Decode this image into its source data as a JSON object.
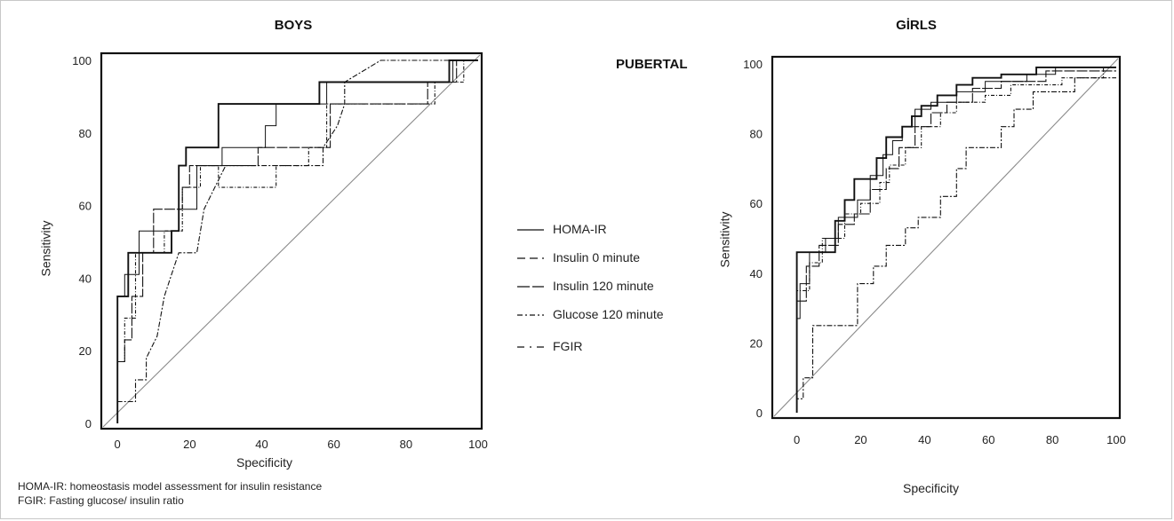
{
  "charts_common": {
    "subtitle": "PUBERTAL",
    "legend": [
      {
        "name": "HOMA-IR",
        "style": "solid"
      },
      {
        "name": "Insulin 0 minute",
        "style": "dash"
      },
      {
        "name": "Insulin 120 minute",
        "style": "longdash"
      },
      {
        "name": "Glucose 120 minute",
        "style": "dashdot"
      },
      {
        "name": "FGIR",
        "style": "dashdot-sparse"
      }
    ],
    "footnotes": [
      "HOMA-IR: homeostasis model assessment for insulin resistance",
      "FGIR: Fasting glucose/ insulin ratio"
    ]
  },
  "chart_data": [
    {
      "type": "line",
      "title": "BOYS",
      "xlabel": "Specificity",
      "ylabel": "Sensitivity",
      "xlim": [
        0,
        100
      ],
      "ylim": [
        0,
        100
      ],
      "xticks": [
        0,
        20,
        40,
        60,
        80,
        100
      ],
      "yticks": [
        0,
        20,
        40,
        60,
        80,
        100
      ],
      "reference_line": true,
      "series": [
        {
          "name": "HOMA-IR",
          "points": [
            [
              0,
              0
            ],
            [
              0,
              35
            ],
            [
              3,
              35
            ],
            [
              3,
              47
            ],
            [
              15,
              47
            ],
            [
              15,
              53
            ],
            [
              17,
              53
            ],
            [
              17,
              71
            ],
            [
              19,
              71
            ],
            [
              19,
              76
            ],
            [
              28,
              76
            ],
            [
              28,
              88
            ],
            [
              56,
              88
            ],
            [
              56,
              94
            ],
            [
              92,
              94
            ],
            [
              92,
              100
            ],
            [
              100,
              100
            ]
          ]
        },
        {
          "name": "Insulin 0 minute",
          "points": [
            [
              0,
              0
            ],
            [
              0,
              35
            ],
            [
              2,
              35
            ],
            [
              2,
              41
            ],
            [
              6,
              41
            ],
            [
              6,
              53
            ],
            [
              17,
              53
            ],
            [
              17,
              59
            ],
            [
              22,
              59
            ],
            [
              22,
              71
            ],
            [
              29,
              71
            ],
            [
              29,
              76
            ],
            [
              41,
              76
            ],
            [
              41,
              82
            ],
            [
              44,
              82
            ],
            [
              44,
              88
            ],
            [
              58,
              88
            ],
            [
              58,
              94
            ],
            [
              93,
              94
            ],
            [
              93,
              100
            ],
            [
              100,
              100
            ]
          ]
        },
        {
          "name": "Insulin 120 minute",
          "points": [
            [
              0,
              0
            ],
            [
              0,
              17
            ],
            [
              2,
              17
            ],
            [
              2,
              23
            ],
            [
              4,
              23
            ],
            [
              4,
              35
            ],
            [
              7,
              35
            ],
            [
              7,
              47
            ],
            [
              10,
              47
            ],
            [
              10,
              59
            ],
            [
              18,
              59
            ],
            [
              18,
              65
            ],
            [
              20,
              65
            ],
            [
              20,
              71
            ],
            [
              27,
              71
            ],
            [
              27,
              71
            ],
            [
              39,
              71
            ],
            [
              39,
              76
            ],
            [
              48,
              76
            ],
            [
              48,
              76
            ],
            [
              59,
              76
            ],
            [
              59,
              88
            ],
            [
              86,
              88
            ],
            [
              86,
              94
            ],
            [
              94,
              94
            ],
            [
              94,
              100
            ],
            [
              100,
              100
            ]
          ]
        },
        {
          "name": "Glucose 120 minute",
          "points": [
            [
              0,
              0
            ],
            [
              0,
              6
            ],
            [
              5,
              6
            ],
            [
              5,
              12
            ],
            [
              8,
              12
            ],
            [
              8,
              18
            ],
            [
              11,
              24
            ],
            [
              13,
              35
            ],
            [
              15,
              41
            ],
            [
              17,
              47
            ],
            [
              22,
              47
            ],
            [
              24,
              59
            ],
            [
              27,
              65
            ],
            [
              30,
              71
            ],
            [
              57,
              71
            ],
            [
              57,
              76
            ],
            [
              61,
              82
            ],
            [
              63,
              88
            ],
            [
              63,
              94
            ],
            [
              73,
              100
            ],
            [
              96,
              100
            ],
            [
              100,
              100
            ]
          ]
        },
        {
          "name": "FGIR",
          "points": [
            [
              0,
              0
            ],
            [
              0,
              17
            ],
            [
              2,
              17
            ],
            [
              2,
              29
            ],
            [
              5,
              29
            ],
            [
              5,
              47
            ],
            [
              13,
              47
            ],
            [
              13,
              53
            ],
            [
              18,
              53
            ],
            [
              18,
              65
            ],
            [
              23,
              65
            ],
            [
              23,
              71
            ],
            [
              28,
              71
            ],
            [
              28,
              65
            ],
            [
              44,
              65
            ],
            [
              44,
              71
            ],
            [
              53,
              71
            ],
            [
              53,
              76
            ],
            [
              58,
              76
            ],
            [
              58,
              88
            ],
            [
              88,
              88
            ],
            [
              88,
              94
            ],
            [
              96,
              94
            ],
            [
              96,
              100
            ],
            [
              100,
              100
            ]
          ]
        }
      ]
    },
    {
      "type": "line",
      "title": "GİRLS",
      "xlabel": "Specificity",
      "ylabel": "Sensitivity",
      "xlim": [
        0,
        100
      ],
      "ylim": [
        0,
        100
      ],
      "xticks": [
        0,
        20,
        40,
        60,
        80,
        100
      ],
      "yticks": [
        0,
        20,
        40,
        60,
        80,
        100
      ],
      "reference_line": true,
      "series": [
        {
          "name": "HOMA-IR",
          "points": [
            [
              0,
              0
            ],
            [
              0,
              46
            ],
            [
              12,
              46
            ],
            [
              12,
              55
            ],
            [
              15,
              55
            ],
            [
              15,
              61
            ],
            [
              18,
              61
            ],
            [
              18,
              67
            ],
            [
              25,
              67
            ],
            [
              25,
              73
            ],
            [
              28,
              73
            ],
            [
              28,
              79
            ],
            [
              33,
              79
            ],
            [
              33,
              82
            ],
            [
              36,
              82
            ],
            [
              36,
              85
            ],
            [
              39,
              85
            ],
            [
              39,
              88
            ],
            [
              44,
              88
            ],
            [
              44,
              91
            ],
            [
              50,
              91
            ],
            [
              50,
              94
            ],
            [
              55,
              94
            ],
            [
              55,
              96
            ],
            [
              64,
              96
            ],
            [
              64,
              97
            ],
            [
              75,
              97
            ],
            [
              75,
              99
            ],
            [
              100,
              99
            ]
          ]
        },
        {
          "name": "Insulin 0 minute",
          "points": [
            [
              0,
              0
            ],
            [
              0,
              27
            ],
            [
              1,
              27
            ],
            [
              1,
              37
            ],
            [
              4,
              37
            ],
            [
              4,
              46
            ],
            [
              9,
              46
            ],
            [
              9,
              50
            ],
            [
              13,
              50
            ],
            [
              13,
              56
            ],
            [
              19,
              56
            ],
            [
              19,
              61
            ],
            [
              23,
              61
            ],
            [
              23,
              68
            ],
            [
              27,
              68
            ],
            [
              27,
              74
            ],
            [
              30,
              74
            ],
            [
              30,
              78
            ],
            [
              33,
              78
            ],
            [
              33,
              82
            ],
            [
              37,
              82
            ],
            [
              37,
              87
            ],
            [
              42,
              87
            ],
            [
              42,
              89
            ],
            [
              50,
              89
            ],
            [
              50,
              92
            ],
            [
              59,
              92
            ],
            [
              59,
              95
            ],
            [
              72,
              95
            ],
            [
              72,
              97
            ],
            [
              81,
              97
            ],
            [
              81,
              99
            ],
            [
              100,
              99
            ]
          ]
        },
        {
          "name": "Insulin 120 minute",
          "points": [
            [
              0,
              0
            ],
            [
              0,
              32
            ],
            [
              3,
              32
            ],
            [
              3,
              42
            ],
            [
              7,
              42
            ],
            [
              7,
              48
            ],
            [
              13,
              48
            ],
            [
              13,
              54
            ],
            [
              18,
              54
            ],
            [
              18,
              57
            ],
            [
              23,
              57
            ],
            [
              23,
              64
            ],
            [
              28,
              64
            ],
            [
              28,
              70
            ],
            [
              32,
              70
            ],
            [
              32,
              76
            ],
            [
              37,
              76
            ],
            [
              37,
              82
            ],
            [
              42,
              82
            ],
            [
              42,
              86
            ],
            [
              47,
              86
            ],
            [
              47,
              89
            ],
            [
              55,
              89
            ],
            [
              55,
              93
            ],
            [
              64,
              93
            ],
            [
              64,
              95
            ],
            [
              78,
              95
            ],
            [
              78,
              98
            ],
            [
              100,
              98
            ]
          ]
        },
        {
          "name": "Glucose 120 minute",
          "points": [
            [
              0,
              0
            ],
            [
              0,
              4
            ],
            [
              2,
              4
            ],
            [
              2,
              10
            ],
            [
              5,
              10
            ],
            [
              5,
              25
            ],
            [
              19,
              25
            ],
            [
              19,
              37
            ],
            [
              24,
              37
            ],
            [
              24,
              42
            ],
            [
              28,
              42
            ],
            [
              28,
              48
            ],
            [
              34,
              48
            ],
            [
              34,
              53
            ],
            [
              38,
              53
            ],
            [
              38,
              56
            ],
            [
              45,
              56
            ],
            [
              45,
              62
            ],
            [
              50,
              62
            ],
            [
              50,
              70
            ],
            [
              53,
              70
            ],
            [
              53,
              76
            ],
            [
              64,
              76
            ],
            [
              64,
              82
            ],
            [
              68,
              82
            ],
            [
              68,
              87
            ],
            [
              74,
              87
            ],
            [
              74,
              92
            ],
            [
              87,
              92
            ],
            [
              87,
              96
            ],
            [
              96,
              96
            ],
            [
              100,
              96
            ]
          ]
        },
        {
          "name": "FGIR",
          "points": [
            [
              0,
              0
            ],
            [
              0,
              35
            ],
            [
              4,
              35
            ],
            [
              4,
              43
            ],
            [
              8,
              43
            ],
            [
              8,
              50
            ],
            [
              15,
              50
            ],
            [
              15,
              57
            ],
            [
              20,
              57
            ],
            [
              20,
              60
            ],
            [
              26,
              60
            ],
            [
              26,
              66
            ],
            [
              29,
              66
            ],
            [
              29,
              71
            ],
            [
              34,
              71
            ],
            [
              34,
              76
            ],
            [
              39,
              76
            ],
            [
              39,
              82
            ],
            [
              45,
              82
            ],
            [
              45,
              86
            ],
            [
              50,
              86
            ],
            [
              50,
              89
            ],
            [
              59,
              89
            ],
            [
              59,
              91
            ],
            [
              67,
              91
            ],
            [
              67,
              94
            ],
            [
              83,
              94
            ],
            [
              83,
              96
            ],
            [
              96,
              96
            ],
            [
              96,
              99
            ],
            [
              100,
              99
            ]
          ]
        }
      ]
    }
  ]
}
